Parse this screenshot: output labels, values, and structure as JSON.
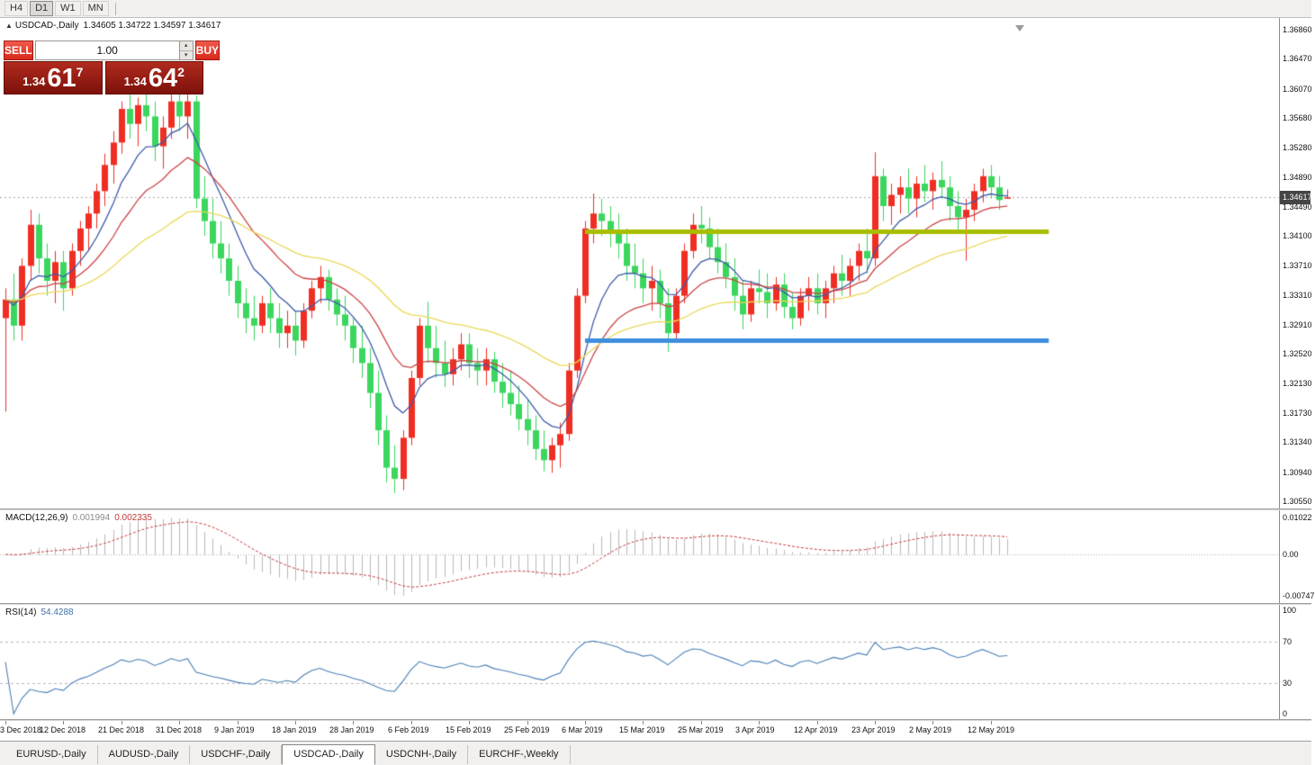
{
  "toolbar": {
    "timeframes": [
      "H4",
      "D1",
      "W1",
      "MN"
    ],
    "active": "D1"
  },
  "chart": {
    "symbol": "USDCAD-,Daily",
    "ohlc": "1.34605 1.34722 1.34597 1.34617",
    "collapse_arrow": "▲"
  },
  "trade_panel": {
    "sell_label": "SELL",
    "buy_label": "BUY",
    "volume": "1.00",
    "sell_price": {
      "prefix": "1.34",
      "main": "61",
      "sup": "7"
    },
    "buy_price": {
      "prefix": "1.34",
      "main": "64",
      "sup": "2"
    }
  },
  "price_axis": {
    "labels": [
      "1.36860",
      "1.36470",
      "1.36070",
      "1.35680",
      "1.35280",
      "1.34890",
      "1.34490",
      "1.34100",
      "1.33710",
      "1.33310",
      "1.32910",
      "1.32520",
      "1.32130",
      "1.31730",
      "1.31340",
      "1.30940",
      "1.30550"
    ],
    "current": "1.34617"
  },
  "macd": {
    "title": "MACD(12,26,9)",
    "main_value": "0.001994",
    "signal_value": "0.002335",
    "axis_top": "0.01022",
    "axis_zero": "0.00",
    "axis_bottom": "-0.00747",
    "fast": 12,
    "slow": 26,
    "signal": 9,
    "histogram_color": "#b9b9b9",
    "signal_color": "#c23b3b"
  },
  "rsi": {
    "title": "RSI(14)",
    "value": "54.4288",
    "period": 14,
    "levels": [
      70,
      30
    ],
    "axis": [
      "100",
      "70",
      "30",
      "0"
    ],
    "line_color": "#4a7fb5"
  },
  "bottom_tabs": {
    "items": [
      "EURUSD-,Daily",
      "AUDUSD-,Daily",
      "USDCHF-,Daily",
      "USDCAD-,Daily",
      "USDCNH-,Daily",
      "EURCHF-,Weekly"
    ],
    "active_index": 3
  },
  "chart_data": {
    "type": "candlestick",
    "symbol": "USDCAD",
    "timeframe": "Daily",
    "price_range": [
      1.3055,
      1.3686
    ],
    "current_price": 1.34617,
    "up_color": "#ef2e23",
    "down_color": "#3bd65e",
    "moving_averages": [
      {
        "name": "fast",
        "period": 8,
        "color": "#3c5ba9"
      },
      {
        "name": "medium",
        "period": 17,
        "color": "#cc4444"
      },
      {
        "name": "slow",
        "period": 40,
        "color": "#e9d857"
      }
    ],
    "hlines": [
      {
        "name": "resistance-line",
        "price": 1.3416,
        "color": "#a8bd00",
        "from_index": 70,
        "to_index": 126,
        "width": 5
      },
      {
        "name": "support-line",
        "price": 1.327,
        "color": "#3e8ede",
        "from_index": 70,
        "to_index": 126,
        "width": 5
      }
    ],
    "date_labels": [
      {
        "text": "3 Dec 2018",
        "index": 0
      },
      {
        "text": "12 Dec 2018",
        "index": 7
      },
      {
        "text": "21 Dec 2018",
        "index": 14
      },
      {
        "text": "31 Dec 2018",
        "index": 21
      },
      {
        "text": "9 Jan 2019",
        "index": 28
      },
      {
        "text": "18 Jan 2019",
        "index": 35
      },
      {
        "text": "28 Jan 2019",
        "index": 42
      },
      {
        "text": "6 Feb 2019",
        "index": 49
      },
      {
        "text": "15 Feb 2019",
        "index": 56
      },
      {
        "text": "25 Feb 2019",
        "index": 63
      },
      {
        "text": "6 Mar 2019",
        "index": 70
      },
      {
        "text": "15 Mar 2019",
        "index": 77
      },
      {
        "text": "25 Mar 2019",
        "index": 84
      },
      {
        "text": "3 Apr 2019",
        "index": 91
      },
      {
        "text": "12 Apr 2019",
        "index": 98
      },
      {
        "text": "23 Apr 2019",
        "index": 105
      },
      {
        "text": "2 May 2019",
        "index": 112
      },
      {
        "text": "12 May 2019",
        "index": 119
      }
    ],
    "candles": [
      [
        1.33,
        1.334,
        1.3175,
        1.3325
      ],
      [
        1.3325,
        1.336,
        1.327,
        1.329
      ],
      [
        1.329,
        1.338,
        1.327,
        1.337
      ],
      [
        1.337,
        1.3445,
        1.335,
        1.3425
      ],
      [
        1.3425,
        1.344,
        1.336,
        1.338
      ],
      [
        1.338,
        1.34,
        1.333,
        1.335
      ],
      [
        1.335,
        1.339,
        1.332,
        1.3375
      ],
      [
        1.3375,
        1.339,
        1.331,
        1.334
      ],
      [
        1.334,
        1.34,
        1.333,
        1.339
      ],
      [
        1.339,
        1.343,
        1.337,
        1.342
      ],
      [
        1.342,
        1.345,
        1.339,
        1.344
      ],
      [
        1.344,
        1.348,
        1.342,
        1.347
      ],
      [
        1.347,
        1.352,
        1.345,
        1.3505
      ],
      [
        1.3505,
        1.355,
        1.348,
        1.3535
      ],
      [
        1.3535,
        1.359,
        1.352,
        1.358
      ],
      [
        1.358,
        1.36,
        1.354,
        1.356
      ],
      [
        1.356,
        1.3595,
        1.353,
        1.3585
      ],
      [
        1.3585,
        1.3605,
        1.355,
        1.357
      ],
      [
        1.357,
        1.359,
        1.351,
        1.353
      ],
      [
        1.353,
        1.357,
        1.35,
        1.3555
      ],
      [
        1.3555,
        1.36,
        1.354,
        1.359
      ],
      [
        1.359,
        1.3605,
        1.355,
        1.357
      ],
      [
        1.357,
        1.36,
        1.354,
        1.359
      ],
      [
        1.359,
        1.3598,
        1.3447,
        1.346
      ],
      [
        1.346,
        1.349,
        1.341,
        1.343
      ],
      [
        1.343,
        1.346,
        1.338,
        1.34
      ],
      [
        1.34,
        1.343,
        1.336,
        1.338
      ],
      [
        1.338,
        1.34,
        1.333,
        1.335
      ],
      [
        1.335,
        1.337,
        1.33,
        1.332
      ],
      [
        1.332,
        1.334,
        1.328,
        1.33
      ],
      [
        1.33,
        1.333,
        1.327,
        1.329
      ],
      [
        1.329,
        1.333,
        1.328,
        1.332
      ],
      [
        1.332,
        1.334,
        1.328,
        1.33
      ],
      [
        1.33,
        1.332,
        1.326,
        1.328
      ],
      [
        1.328,
        1.331,
        1.326,
        1.329
      ],
      [
        1.329,
        1.331,
        1.325,
        1.327
      ],
      [
        1.327,
        1.332,
        1.326,
        1.331
      ],
      [
        1.331,
        1.335,
        1.33,
        1.334
      ],
      [
        1.334,
        1.337,
        1.332,
        1.3355
      ],
      [
        1.3355,
        1.3365,
        1.331,
        1.3325
      ],
      [
        1.3325,
        1.334,
        1.329,
        1.3305
      ],
      [
        1.3305,
        1.333,
        1.327,
        1.329
      ],
      [
        1.329,
        1.33,
        1.324,
        1.326
      ],
      [
        1.326,
        1.329,
        1.322,
        1.324
      ],
      [
        1.324,
        1.326,
        1.318,
        1.32
      ],
      [
        1.32,
        1.323,
        1.313,
        1.315
      ],
      [
        1.315,
        1.317,
        1.308,
        1.31
      ],
      [
        1.31,
        1.313,
        1.3066,
        1.3085
      ],
      [
        1.3085,
        1.315,
        1.307,
        1.314
      ],
      [
        1.314,
        1.323,
        1.313,
        1.322
      ],
      [
        1.322,
        1.33,
        1.321,
        1.329
      ],
      [
        1.329,
        1.3322,
        1.324,
        1.326
      ],
      [
        1.326,
        1.329,
        1.322,
        1.324
      ],
      [
        1.324,
        1.327,
        1.3208,
        1.3225
      ],
      [
        1.3225,
        1.326,
        1.321,
        1.3245
      ],
      [
        1.3245,
        1.328,
        1.323,
        1.3265
      ],
      [
        1.3265,
        1.328,
        1.322,
        1.324
      ],
      [
        1.324,
        1.326,
        1.321,
        1.323
      ],
      [
        1.323,
        1.326,
        1.321,
        1.3245
      ],
      [
        1.3245,
        1.3255,
        1.32,
        1.3215
      ],
      [
        1.3215,
        1.324,
        1.318,
        1.32
      ],
      [
        1.32,
        1.323,
        1.317,
        1.3185
      ],
      [
        1.3185,
        1.321,
        1.315,
        1.3165
      ],
      [
        1.3165,
        1.319,
        1.313,
        1.315
      ],
      [
        1.315,
        1.317,
        1.311,
        1.3125
      ],
      [
        1.3125,
        1.315,
        1.3095,
        1.311
      ],
      [
        1.311,
        1.314,
        1.3093,
        1.313
      ],
      [
        1.313,
        1.316,
        1.31,
        1.3145
      ],
      [
        1.3145,
        1.324,
        1.3136,
        1.323
      ],
      [
        1.323,
        1.334,
        1.322,
        1.333
      ],
      [
        1.333,
        1.343,
        1.332,
        1.342
      ],
      [
        1.342,
        1.3467,
        1.34,
        1.344
      ],
      [
        1.344,
        1.346,
        1.341,
        1.343
      ],
      [
        1.343,
        1.345,
        1.3395,
        1.3415
      ],
      [
        1.3415,
        1.344,
        1.338,
        1.34
      ],
      [
        1.34,
        1.342,
        1.335,
        1.337
      ],
      [
        1.337,
        1.34,
        1.334,
        1.336
      ],
      [
        1.336,
        1.338,
        1.332,
        1.334
      ],
      [
        1.334,
        1.337,
        1.331,
        1.335
      ],
      [
        1.335,
        1.3365,
        1.33,
        1.332
      ],
      [
        1.332,
        1.334,
        1.3255,
        1.328
      ],
      [
        1.328,
        1.334,
        1.327,
        1.333
      ],
      [
        1.333,
        1.34,
        1.332,
        1.339
      ],
      [
        1.339,
        1.344,
        1.338,
        1.3425
      ],
      [
        1.3425,
        1.345,
        1.34,
        1.342
      ],
      [
        1.342,
        1.3435,
        1.338,
        1.3395
      ],
      [
        1.3395,
        1.342,
        1.336,
        1.3375
      ],
      [
        1.3375,
        1.34,
        1.334,
        1.3355
      ],
      [
        1.3355,
        1.338,
        1.331,
        1.333
      ],
      [
        1.333,
        1.335,
        1.3285,
        1.3305
      ],
      [
        1.3305,
        1.335,
        1.3295,
        1.334
      ],
      [
        1.334,
        1.3365,
        1.332,
        1.3335
      ],
      [
        1.3335,
        1.336,
        1.33,
        1.332
      ],
      [
        1.332,
        1.3355,
        1.331,
        1.3345
      ],
      [
        1.3345,
        1.336,
        1.33,
        1.3315
      ],
      [
        1.3315,
        1.3335,
        1.3285,
        1.33
      ],
      [
        1.33,
        1.334,
        1.329,
        1.333
      ],
      [
        1.333,
        1.3355,
        1.331,
        1.334
      ],
      [
        1.334,
        1.336,
        1.3305,
        1.332
      ],
      [
        1.332,
        1.335,
        1.33,
        1.334
      ],
      [
        1.334,
        1.337,
        1.332,
        1.336
      ],
      [
        1.336,
        1.3385,
        1.333,
        1.335
      ],
      [
        1.335,
        1.338,
        1.333,
        1.337
      ],
      [
        1.337,
        1.34,
        1.335,
        1.339
      ],
      [
        1.339,
        1.342,
        1.336,
        1.338
      ],
      [
        1.338,
        1.3522,
        1.337,
        1.349
      ],
      [
        1.349,
        1.35,
        1.343,
        1.345
      ],
      [
        1.345,
        1.348,
        1.3425,
        1.3465
      ],
      [
        1.3465,
        1.349,
        1.344,
        1.3475
      ],
      [
        1.3475,
        1.35,
        1.344,
        1.346
      ],
      [
        1.346,
        1.349,
        1.3435,
        1.348
      ],
      [
        1.348,
        1.3505,
        1.3455,
        1.347
      ],
      [
        1.347,
        1.3495,
        1.3445,
        1.3485
      ],
      [
        1.3485,
        1.351,
        1.346,
        1.3475
      ],
      [
        1.3475,
        1.349,
        1.343,
        1.345
      ],
      [
        1.345,
        1.347,
        1.3415,
        1.3435
      ],
      [
        1.3435,
        1.346,
        1.3377,
        1.3445
      ],
      [
        1.3445,
        1.348,
        1.343,
        1.347
      ],
      [
        1.347,
        1.35,
        1.3455,
        1.349
      ],
      [
        1.349,
        1.3505,
        1.346,
        1.3475
      ],
      [
        1.3475,
        1.349,
        1.3445,
        1.3458
      ],
      [
        1.34605,
        1.34722,
        1.34597,
        1.34617
      ]
    ]
  }
}
